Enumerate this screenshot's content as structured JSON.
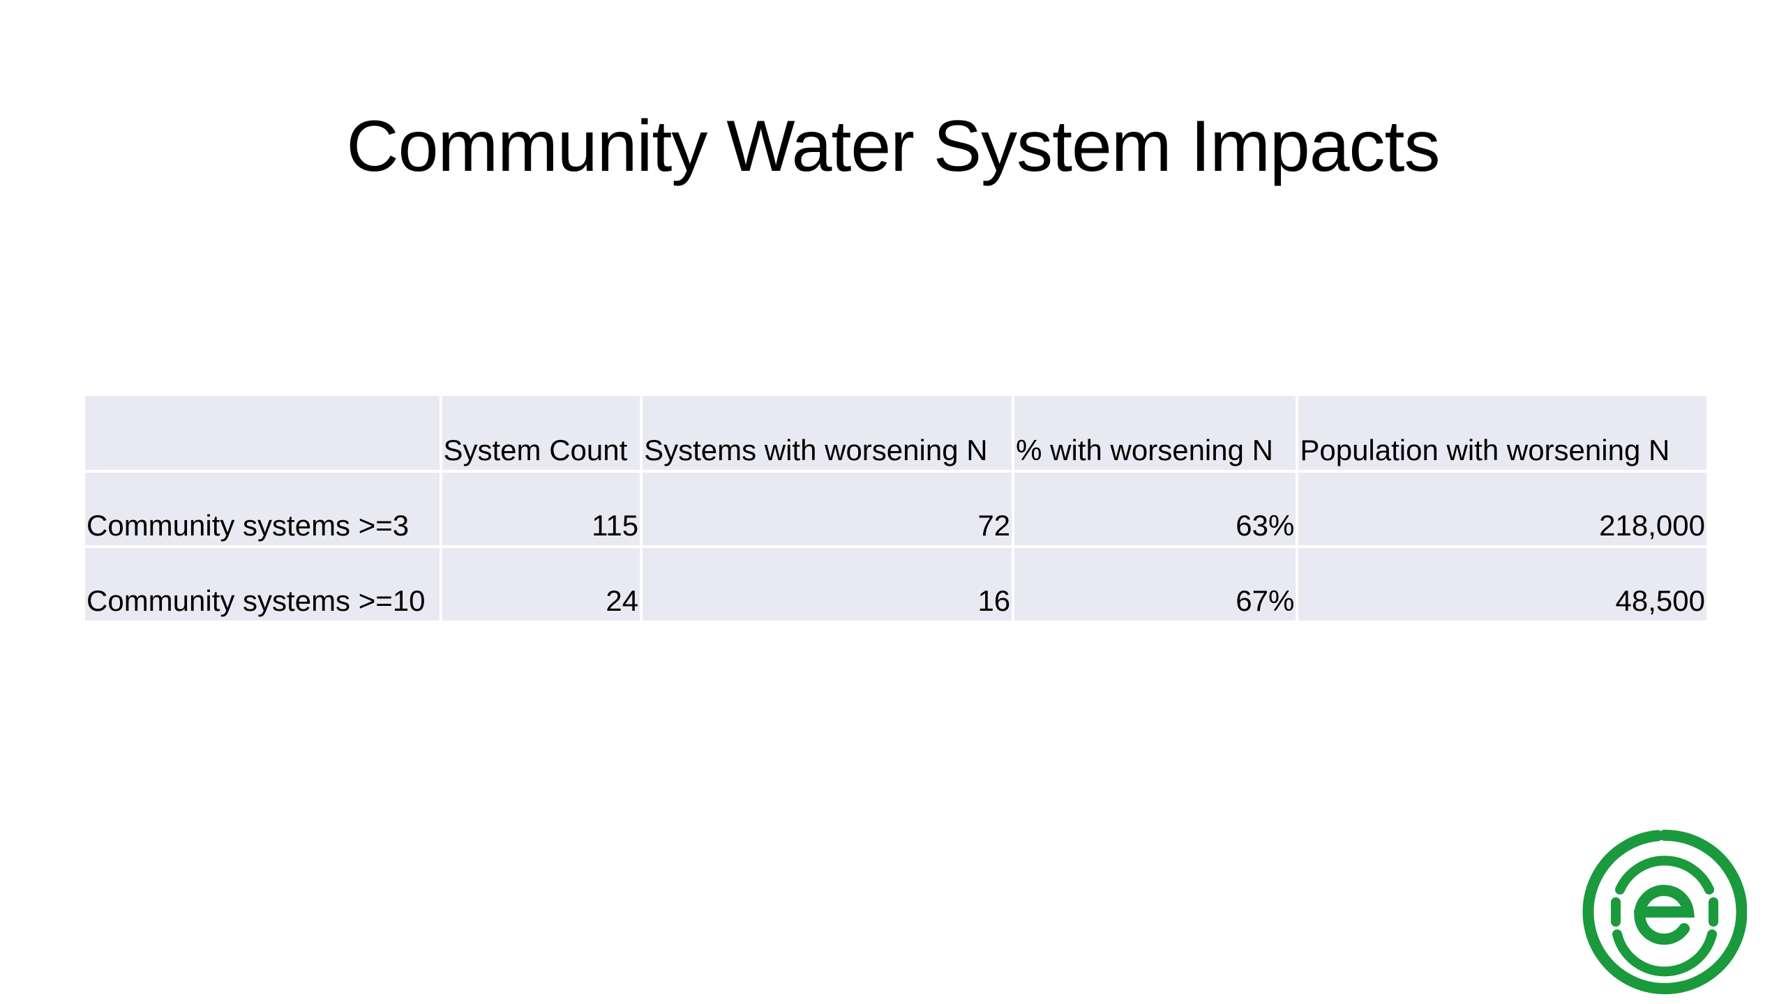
{
  "slide": {
    "title": "Community Water System Impacts"
  },
  "table": {
    "columns": [
      "",
      "System Count",
      "Systems with worsening N",
      "% with worsening N",
      "Population with worsening N"
    ],
    "rows": [
      {
        "label": "Community systems >=3",
        "system_count": "115",
        "systems_worsening": "72",
        "pct_worsening": "63%",
        "population_worsening": "218,000"
      },
      {
        "label": "Community systems >=10",
        "system_count": "24",
        "systems_worsening": "16",
        "pct_worsening": "67%",
        "population_worsening": "48,500"
      }
    ]
  },
  "logo": {
    "icon": "green-e-circle-logo",
    "color": "#1a9a3c"
  }
}
